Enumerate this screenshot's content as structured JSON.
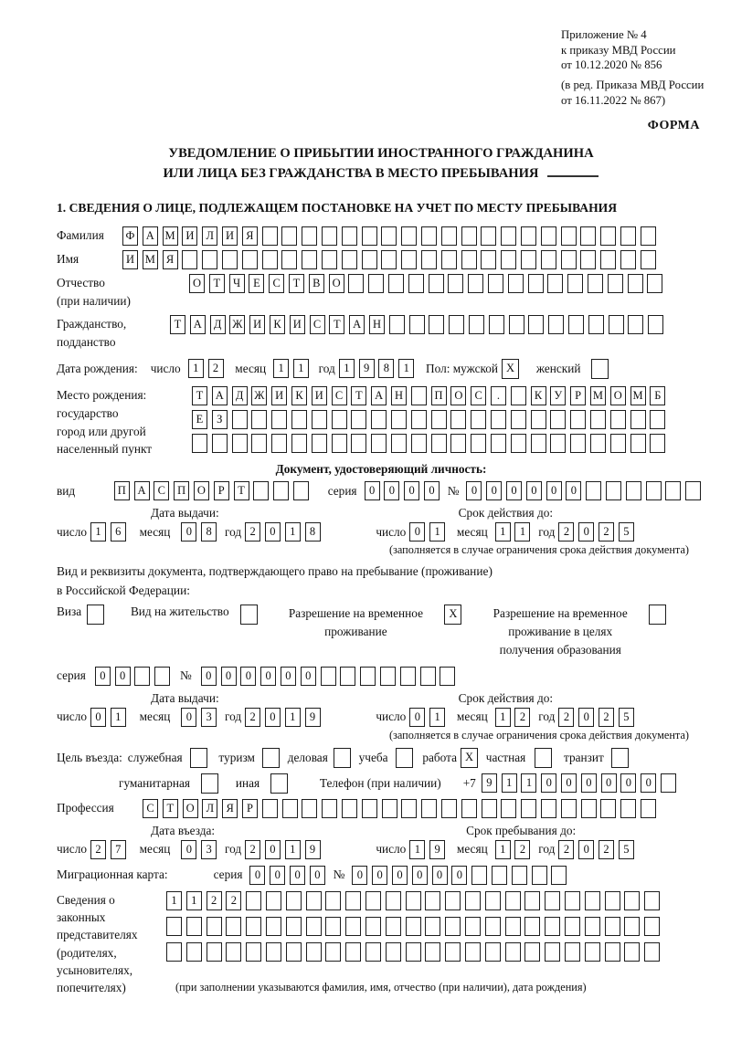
{
  "labels": {
    "day": "число",
    "month": "месяц",
    "year": "год",
    "series": "серия",
    "number": "№"
  },
  "heads": {
    "issue": "Дата выдачи:",
    "valid": "Срок действия до:",
    "entry": "Дата въезда:",
    "stay": "Срок пребывания до:"
  },
  "notes": {
    "limit": "(заполняется в случае ограничения срока действия документа)"
  },
  "header": {
    "appendix": [
      "Приложение № 4",
      "к приказу МВД России",
      "от 10.12.2020 № 856"
    ],
    "edition": [
      "(в ред. Приказа МВД России",
      "от 16.11.2022 № 867)"
    ],
    "form_label": "ФОРМА"
  },
  "title": {
    "line1": "УВЕДОМЛЕНИЕ О ПРИБЫТИИ ИНОСТРАННОГО ГРАЖДАНИНА",
    "line2": "ИЛИ ЛИЦА БЕЗ ГРАЖДАНСТВА В МЕСТО ПРЕБЫВАНИЯ"
  },
  "section1": {
    "title": "1. СВЕДЕНИЯ О ЛИЦЕ, ПОДЛЕЖАЩЕМ ПОСТАНОВКЕ НА УЧЕТ ПО МЕСТУ ПРЕБЫВАНИЯ"
  },
  "person": {
    "surname": {
      "label": "Фамилия",
      "cells": {
        "n": 27,
        "v": "ФАМИЛИЯ"
      }
    },
    "name": {
      "label": "Имя",
      "cells": {
        "n": 27,
        "v": "ИМЯ"
      }
    },
    "patronymic": {
      "label": "Отчество",
      "label2": "(при наличии)",
      "cells": {
        "n": 24,
        "v": "ОТЧЕСТВО"
      }
    },
    "citizenship": {
      "label": "Гражданство,",
      "label2": "подданство",
      "cells": {
        "n": 25,
        "v": "ТАДЖИКИСТАН"
      }
    },
    "birth_date": {
      "label": "Дата рождения:",
      "day": {
        "n": 2,
        "v": "12"
      },
      "month": {
        "n": 2,
        "v": "11"
      },
      "year": {
        "n": 4,
        "v": "1981"
      },
      "sex_label": "Пол: мужской",
      "male_box": {
        "n": 1,
        "v": "X"
      },
      "female_label": "женский",
      "female_box": {
        "n": 1,
        "v": ""
      }
    },
    "birth_place": {
      "labels": [
        "Место рождения:",
        "государство",
        "город или другой",
        "населенный пункт"
      ],
      "row1": {
        "n": 24,
        "v": "ТАДЖИКИСТАН ПОС. КУРМОМБ"
      },
      "row2": {
        "n": 24,
        "v": "ЕЗ"
      },
      "row3": {
        "n": 24,
        "v": ""
      }
    }
  },
  "identity_doc": {
    "header": "Документ, удостоверяющий личность:",
    "kind_label": "вид",
    "kind": {
      "n": 10,
      "v": "ПАСПОРТ"
    },
    "series": {
      "n": 4,
      "v": "0000"
    },
    "number": {
      "n": 12,
      "v": "000000"
    },
    "issue": {
      "day": {
        "n": 2,
        "v": "16"
      },
      "month": {
        "n": 2,
        "v": "08"
      },
      "year": {
        "n": 4,
        "v": "2018"
      }
    },
    "valid": {
      "day": {
        "n": 2,
        "v": "01"
      },
      "month": {
        "n": 2,
        "v": "11"
      },
      "year": {
        "n": 4,
        "v": "2025"
      }
    }
  },
  "residence_doc": {
    "line1": "Вид и реквизиты документа, подтверждающего право на пребывание (проживание)",
    "line2": "в Российской Федерации:",
    "options": [
      {
        "label": "Виза",
        "box": {
          "n": 1,
          "v": ""
        }
      },
      {
        "label": "Вид на жительство",
        "box": {
          "n": 1,
          "v": ""
        }
      },
      {
        "lines": [
          "Разрешение на временное",
          "проживание"
        ],
        "box": {
          "n": 1,
          "v": "X"
        }
      },
      {
        "lines": [
          "Разрешение на временное",
          "проживание в целях",
          "получения образования"
        ],
        "box": {
          "n": 1,
          "v": ""
        }
      }
    ],
    "series": {
      "n": 4,
      "v": "00"
    },
    "number": {
      "n": 13,
      "v": "000000"
    },
    "issue": {
      "day": {
        "n": 2,
        "v": "01"
      },
      "month": {
        "n": 2,
        "v": "03"
      },
      "year": {
        "n": 4,
        "v": "2019"
      }
    },
    "valid": {
      "day": {
        "n": 2,
        "v": "01"
      },
      "month": {
        "n": 2,
        "v": "12"
      },
      "year": {
        "n": 4,
        "v": "2025"
      }
    }
  },
  "visit": {
    "intro": "Цель въезда:",
    "options": [
      {
        "label": "служебная",
        "box": {
          "n": 1,
          "v": ""
        }
      },
      {
        "label": "туризм",
        "box": {
          "n": 1,
          "v": ""
        }
      },
      {
        "label": "деловая",
        "box": {
          "n": 1,
          "v": ""
        }
      },
      {
        "label": "учеба",
        "box": {
          "n": 1,
          "v": ""
        }
      },
      {
        "label": "работа",
        "box": {
          "n": 1,
          "v": "X"
        }
      },
      {
        "label": "частная",
        "box": {
          "n": 1,
          "v": ""
        }
      },
      {
        "label": "транзит",
        "box": {
          "n": 1,
          "v": ""
        }
      }
    ],
    "options2": [
      {
        "label": "гуманитарная",
        "box": {
          "n": 1,
          "v": ""
        }
      },
      {
        "label": "иная",
        "box": {
          "n": 1,
          "v": ""
        }
      }
    ],
    "phone_label": "Телефон (при наличии)",
    "phone_prefix": "+7",
    "phone": {
      "n": 10,
      "v": "911000000"
    }
  },
  "profession": {
    "label": "Профессия",
    "cells": {
      "n": 26,
      "v": "СТОЛЯР"
    }
  },
  "entry": {
    "entry_date": {
      "day": {
        "n": 2,
        "v": "27"
      },
      "month": {
        "n": 2,
        "v": "03"
      },
      "year": {
        "n": 4,
        "v": "2019"
      }
    },
    "stay_until": {
      "day": {
        "n": 2,
        "v": "19"
      },
      "month": {
        "n": 2,
        "v": "12"
      },
      "year": {
        "n": 4,
        "v": "2025"
      }
    }
  },
  "migration_card": {
    "label": "Миграционная карта:",
    "series": {
      "n": 4,
      "v": "0000"
    },
    "number": {
      "n": 11,
      "v": "000000"
    }
  },
  "representatives": {
    "labels": [
      "Сведения о",
      "законных",
      "представителях",
      "(родителях,",
      "усыновителях,",
      "попечителях)"
    ],
    "row1": {
      "n": 25,
      "v": "1122"
    },
    "row2": {
      "n": 25,
      "v": ""
    },
    "row3": {
      "n": 25,
      "v": ""
    },
    "note": "(при заполнении указываются фамилия, имя, отчество (при наличии), дата рождения)"
  }
}
